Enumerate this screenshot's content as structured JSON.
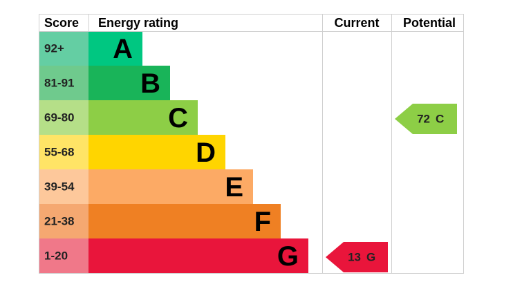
{
  "header": {
    "score": "Score",
    "rating": "Energy rating",
    "current": "Current",
    "potential": "Potential"
  },
  "bands": [
    {
      "score": "92+",
      "letter": "A",
      "color": "#00c781",
      "score_color": "#64cea3"
    },
    {
      "score": "81-91",
      "letter": "B",
      "color": "#19b459",
      "score_color": "#6fca8d"
    },
    {
      "score": "69-80",
      "letter": "C",
      "color": "#8dce46",
      "score_color": "#b5df88"
    },
    {
      "score": "55-68",
      "letter": "D",
      "color": "#ffd500",
      "score_color": "#ffe466"
    },
    {
      "score": "39-54",
      "letter": "E",
      "color": "#fcaa65",
      "score_color": "#fdc89b"
    },
    {
      "score": "21-38",
      "letter": "F",
      "color": "#ef8023",
      "score_color": "#f5a871"
    },
    {
      "score": "1-20",
      "letter": "G",
      "color": "#e9153b",
      "score_color": "#f07889"
    }
  ],
  "current": {
    "value": 13,
    "letter": "G",
    "color": "#e9153b"
  },
  "potential": {
    "value": 72,
    "letter": "C",
    "color": "#8dce46"
  }
}
